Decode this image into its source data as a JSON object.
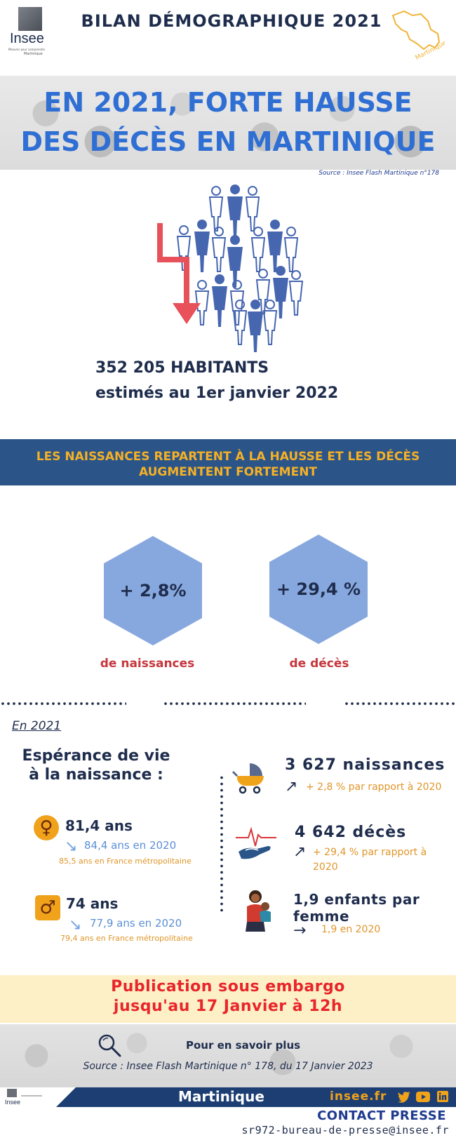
{
  "header": {
    "logo_word": "Insee",
    "logo_tagline": "Mesurer pour comprendre",
    "logo_region": "Martinique",
    "title": "BILAN DÉMOGRAPHIQUE 2021",
    "map_label": "Martinique"
  },
  "hero": {
    "title": "EN 2021, FORTE HAUSSE DES DÉCÈS EN MARTINIQUE",
    "source": "Source : Insee Flash Martinique n°178"
  },
  "population": {
    "value": "352 205 HABITANTS",
    "subtitle": "estimés au 1er  janvier 2022"
  },
  "band": {
    "text": "LES NAISSANCES REPARTENT À LA HAUSSE ET LES DÉCÈS AUGMENTENT FORTEMENT"
  },
  "hexagons": {
    "births_value": "+ 2,8%",
    "births_label": "de naissances",
    "deaths_value": "+ 29,4 %",
    "deaths_label": "de décès"
  },
  "section": {
    "year": "En 2021"
  },
  "life_expectancy": {
    "title": "Espérance de vie à la naissance :",
    "female_symbol": "♀",
    "female_value": "81,4 ans",
    "female_prev": "84,4 ans en  2020",
    "female_france": "85,5 ans en France métropolitaine",
    "male_symbol": "♂",
    "male_value": "74 ans",
    "male_prev": "77,9 ans en  2020",
    "male_france": "79,4 ans en France métropolitaine",
    "down_arrow": "↘"
  },
  "stats": {
    "births_value": "3 627 naissances",
    "births_change": "+ 2,8 % par rapport à 2020",
    "deaths_value": "4 642 décès",
    "deaths_change": "+ 29,4 % par rapport à 2020",
    "fertility_value": "1,9 enfants par femme",
    "fertility_prev": "1,9  en 2020",
    "up_arrow": "↗",
    "right_arrow": "→"
  },
  "embargo": {
    "line1": "Publication sous embargo",
    "line2": "jusqu'au 17 Janvier à 12h"
  },
  "more": {
    "label": "Pour en savoir plus",
    "source": "Source : Insee Flash Martinique n° 178, du 17 Janvier 2023"
  },
  "footer": {
    "region": "Martinique",
    "site": "insee.fr",
    "contact_title": "CONTACT PRESSE",
    "contact_email": "sr972-bureau-de-presse@insee.fr"
  },
  "colors": {
    "navy": "#1f2d4d",
    "blue_title": "#2f6fd4",
    "band": "#2b5588",
    "orange": "#f0a21b",
    "red": "#e8252b",
    "hexagon": "#87a8de"
  }
}
